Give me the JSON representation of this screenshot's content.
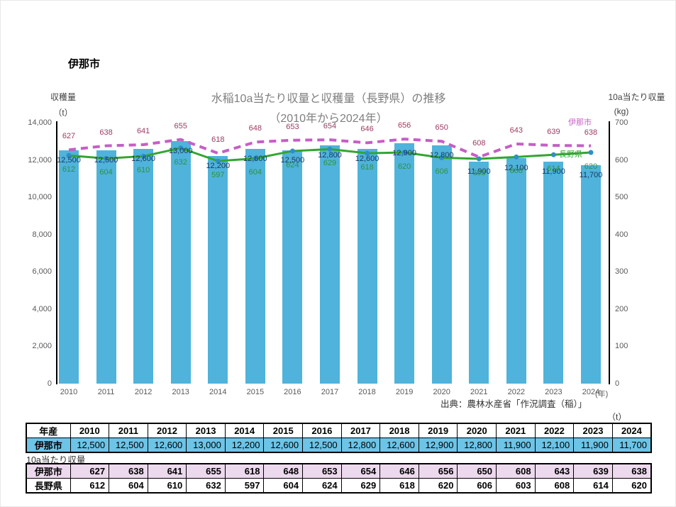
{
  "page": {
    "heading": "伊那市"
  },
  "chart_data": {
    "type": "bar+line",
    "title_line1": "水稲10a当たり収量と収穫量（長野県）の推移",
    "title_line2": "（2010年から2024年）",
    "source": "出典：農林水産省「作況調査（稲）」",
    "x_unit_label": "(年)",
    "categories": [
      "2010",
      "2011",
      "2012",
      "2013",
      "2014",
      "2015",
      "2016",
      "2017",
      "2018",
      "2019",
      "2020",
      "2021",
      "2022",
      "2023",
      "2024"
    ],
    "left_axis": {
      "label_line1": "収穫量",
      "label_line2": "（t）",
      "range": [
        0,
        14000
      ],
      "ticks": [
        "14,000",
        "12,000",
        "10,000",
        "8,000",
        "6,000",
        "4,000",
        "2,000",
        "0"
      ]
    },
    "right_axis": {
      "label_line1": "10a当たり収量",
      "label_line2": "(kg)",
      "range": [
        0,
        700
      ],
      "ticks": [
        "700",
        "600",
        "500",
        "400",
        "300",
        "200",
        "100",
        "0"
      ]
    },
    "bar_series": {
      "name": "伊那市（収穫量）",
      "color": "#4FB3DB",
      "values": [
        12500,
        12500,
        12600,
        13000,
        12200,
        12600,
        12500,
        12800,
        12600,
        12900,
        12800,
        11900,
        12100,
        11900,
        11700
      ],
      "labels": [
        "12,500",
        "12,500",
        "12,600",
        "13,000",
        "12,200",
        "12,600",
        "12,500",
        "12,800",
        "12,600",
        "12,900",
        "12,800",
        "11,900",
        "12,100",
        "11,900",
        "11,700"
      ]
    },
    "line_series": [
      {
        "name": "伊那市",
        "style": "dashed",
        "color": "#C65EC6",
        "label_color": "#9E3B63",
        "values": [
          627,
          638,
          641,
          655,
          618,
          648,
          653,
          654,
          646,
          656,
          650,
          608,
          643,
          639,
          638
        ]
      },
      {
        "name": "長野県",
        "style": "solid",
        "color": "#33A532",
        "label_color": "#2E9145",
        "marker_color": "#2F8FC4",
        "values": [
          612,
          604,
          610,
          632,
          597,
          604,
          624,
          629,
          618,
          620,
          606,
          603,
          608,
          614,
          620
        ]
      }
    ],
    "legend": {
      "ina_label": "伊那市",
      "nagano_label": "長野県"
    }
  },
  "tables": {
    "harvest_unit": "（t）",
    "harvest": {
      "header_label": "年産",
      "years": [
        "2010",
        "2011",
        "2012",
        "2013",
        "2014",
        "2015",
        "2016",
        "2017",
        "2018",
        "2019",
        "2020",
        "2021",
        "2022",
        "2023",
        "2024"
      ],
      "row_label": "伊那市",
      "values": [
        "12,500",
        "12,500",
        "12,600",
        "13,000",
        "12,200",
        "12,600",
        "12,500",
        "12,800",
        "12,600",
        "12,900",
        "12,800",
        "11,900",
        "12,100",
        "11,900",
        "11,700"
      ]
    },
    "yield_section_label": "10a当たり収量",
    "yield": {
      "rows": [
        {
          "key": "ina",
          "label": "伊那市",
          "values": [
            "627",
            "638",
            "641",
            "655",
            "618",
            "648",
            "653",
            "654",
            "646",
            "656",
            "650",
            "608",
            "643",
            "639",
            "638"
          ]
        },
        {
          "key": "nagano",
          "label": "長野県",
          "values": [
            "612",
            "604",
            "610",
            "632",
            "597",
            "604",
            "624",
            "629",
            "618",
            "620",
            "606",
            "603",
            "608",
            "614",
            "620"
          ]
        }
      ]
    }
  }
}
